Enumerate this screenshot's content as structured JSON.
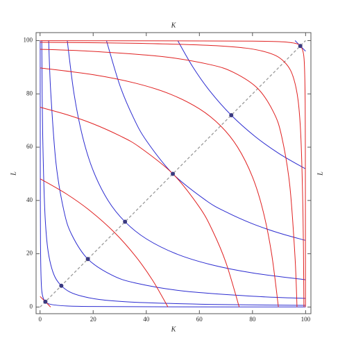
{
  "chart_data": {
    "type": "line",
    "xlabel": "K",
    "ylabel": "L",
    "xlim": [
      -1.5,
      102
    ],
    "ylim": [
      -2.5,
      103
    ],
    "xticks": [
      0,
      20,
      40,
      60,
      80,
      100
    ],
    "yticks": [
      0,
      20,
      40,
      60,
      80,
      100
    ],
    "series": [
      {
        "color": "#2b2bd0",
        "x": [
          0.04,
          0.1,
          0.2,
          0.5,
          1,
          2,
          4,
          10,
          20,
          50,
          100
        ],
        "values": [
          100,
          40,
          20,
          8,
          4,
          2,
          1,
          0.4,
          0.2,
          0.08,
          0.04
        ]
      },
      {
        "color": "#2b2bd0",
        "x": [
          0.64,
          1,
          2,
          4,
          8,
          16,
          32,
          64,
          100
        ],
        "values": [
          100,
          64,
          32,
          16,
          8,
          4,
          2,
          1,
          0.64
        ]
      },
      {
        "color": "#2b2bd0",
        "x": [
          3.24,
          4,
          6,
          9,
          12,
          18,
          27,
          36,
          54,
          81,
          100
        ],
        "values": [
          100,
          81,
          54,
          36,
          27,
          18,
          12,
          9,
          6,
          4,
          3.24
        ]
      },
      {
        "color": "#2b2bd0",
        "x": [
          10.24,
          12.8,
          16,
          20,
          25.6,
          32,
          40,
          51.2,
          64,
          80,
          100
        ],
        "values": [
          100,
          80,
          64,
          51.2,
          40,
          32,
          25.6,
          20,
          16,
          12.8,
          10.24
        ]
      },
      {
        "color": "#2b2bd0",
        "x": [
          25,
          30,
          35,
          40,
          50,
          62.5,
          70,
          80,
          90,
          100
        ],
        "values": [
          100,
          83.33,
          71.43,
          62.5,
          50,
          40,
          35.71,
          31.25,
          27.78,
          25
        ]
      },
      {
        "color": "#2b2bd0",
        "x": [
          51.84,
          57.6,
          64,
          72,
          81,
          90,
          100
        ],
        "values": [
          100,
          90,
          81,
          72,
          64,
          57.6,
          51.84
        ]
      },
      {
        "color": "#2b2bd0",
        "x": [
          96.04,
          97,
          98,
          99,
          100
        ],
        "values": [
          100,
          99.01,
          98,
          97.01,
          96.04
        ]
      },
      {
        "color": "#e02020",
        "x": [
          3.96,
          3,
          2,
          1,
          0
        ],
        "values": [
          0,
          0.99,
          2,
          2.99,
          3.96
        ]
      },
      {
        "color": "#e02020",
        "x": [
          48.16,
          42.4,
          36,
          28,
          19,
          10,
          0
        ],
        "values": [
          0,
          10,
          19,
          28,
          36,
          42.4,
          48.16
        ]
      },
      {
        "color": "#e02020",
        "x": [
          75,
          70,
          65,
          60,
          50,
          37.5,
          30,
          20,
          10,
          0
        ],
        "values": [
          0,
          16.67,
          28.57,
          37.5,
          50,
          60,
          64.29,
          68.75,
          72.22,
          75
        ]
      },
      {
        "color": "#e02020",
        "x": [
          89.76,
          87.2,
          84,
          80,
          74.4,
          68,
          60,
          48.8,
          36,
          20,
          0
        ],
        "values": [
          0,
          20,
          36,
          48.8,
          60,
          68,
          74.4,
          80,
          84,
          87.2,
          89.76
        ]
      },
      {
        "color": "#e02020",
        "x": [
          96.76,
          96,
          94,
          91,
          88,
          82,
          73,
          64,
          46,
          19,
          0
        ],
        "values": [
          0,
          19,
          46,
          64,
          73,
          82,
          88,
          91,
          94,
          96,
          96.76
        ]
      },
      {
        "color": "#e02020",
        "x": [
          99.36,
          99,
          98,
          96,
          92,
          84,
          68,
          36,
          0
        ],
        "values": [
          0,
          36,
          68,
          84,
          92,
          96,
          98,
          99,
          99.36
        ]
      },
      {
        "color": "#e02020",
        "x": [
          99.96,
          99.9,
          99.8,
          99.5,
          99,
          98,
          96,
          90,
          80,
          50,
          0
        ],
        "values": [
          0,
          60,
          80,
          92,
          96,
          98,
          99,
          99.6,
          99.8,
          99.92,
          99.96
        ]
      }
    ],
    "diagonal": {
      "color": "#999999",
      "x": [
        0,
        100
      ],
      "values": [
        0,
        100
      ]
    },
    "points": {
      "color": "#3a3a80",
      "x": [
        2,
        8,
        18,
        32,
        50,
        72,
        98
      ],
      "values": [
        2,
        8,
        18,
        32,
        50,
        72,
        98
      ]
    }
  }
}
